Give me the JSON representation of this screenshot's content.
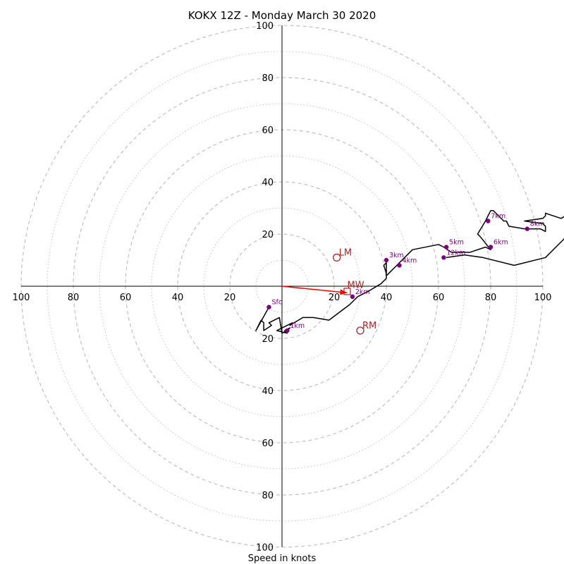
{
  "chart_data": {
    "type": "hodograph",
    "title": "KOKX 12Z - Monday March 30 2020",
    "xlabel": "Speed in knots",
    "rlim": [
      0,
      100
    ],
    "ring_labels": [
      "20",
      "40",
      "60",
      "80",
      "100"
    ],
    "grid": true,
    "colors": {
      "profile": "#000000",
      "height_markers": "#800080",
      "motion": "#b22222",
      "shear_vector": "#ff0000",
      "grid": "#bbbbbb",
      "axes": "#000000"
    },
    "profile_line": [
      [
        -5,
        -8
      ],
      [
        -10,
        -17
      ],
      [
        -8,
        -13
      ],
      [
        -7,
        -14
      ],
      [
        -7,
        -17
      ],
      [
        -4,
        -15
      ],
      [
        -5,
        -14
      ],
      [
        -1,
        -12
      ],
      [
        0,
        -18
      ],
      [
        2,
        -17
      ],
      [
        3,
        -16
      ],
      [
        1,
        -17
      ],
      [
        2,
        -18
      ],
      [
        -2,
        -17
      ],
      [
        0,
        -16
      ],
      [
        4,
        -14
      ],
      [
        3,
        -15
      ],
      [
        8,
        -12
      ],
      [
        12,
        -12
      ],
      [
        18,
        -13
      ],
      [
        26,
        -7
      ],
      [
        29,
        -4
      ],
      [
        33,
        -2
      ],
      [
        38,
        1
      ],
      [
        40,
        3
      ],
      [
        40,
        5
      ],
      [
        39,
        8
      ],
      [
        40,
        9
      ],
      [
        40,
        4
      ],
      [
        43,
        7
      ],
      [
        50,
        14
      ],
      [
        60,
        16
      ],
      [
        62,
        15
      ],
      [
        65,
        13
      ],
      [
        72,
        13
      ],
      [
        78,
        15
      ],
      [
        80,
        14
      ],
      [
        76,
        19
      ],
      [
        75,
        20
      ],
      [
        78,
        25
      ],
      [
        80,
        29
      ],
      [
        81,
        29
      ],
      [
        83,
        27
      ],
      [
        85,
        25
      ],
      [
        86,
        25
      ],
      [
        87,
        23
      ],
      [
        93,
        22
      ],
      [
        99,
        22
      ],
      [
        101,
        21
      ],
      [
        101,
        23
      ],
      [
        100,
        24
      ],
      [
        93,
        25
      ],
      [
        100,
        26
      ],
      [
        101,
        27
      ],
      [
        101,
        28
      ],
      [
        107,
        26
      ],
      [
        112,
        29
      ],
      [
        120,
        31
      ],
      [
        115,
        25
      ],
      [
        101,
        11
      ],
      [
        89,
        8
      ],
      [
        77,
        11
      ],
      [
        70,
        12
      ],
      [
        63,
        11
      ]
    ],
    "height_markers": [
      {
        "label": "Sfc",
        "x": -5,
        "y": -8
      },
      {
        "label": "1km",
        "x": 2,
        "y": -17
      },
      {
        "label": "2km",
        "x": 27,
        "y": -4
      },
      {
        "label": "3km",
        "x": 40,
        "y": 10
      },
      {
        "label": "4km",
        "x": 45,
        "y": 8
      },
      {
        "label": "5km",
        "x": 63,
        "y": 15
      },
      {
        "label": "6km",
        "x": 80,
        "y": 15
      },
      {
        "label": "7km",
        "x": 79,
        "y": 25
      },
      {
        "label": "8km",
        "x": 94,
        "y": 22
      },
      {
        "label": "12km",
        "x": 62,
        "y": 11
      }
    ],
    "storm_motion": [
      {
        "label": "LM",
        "x": 21,
        "y": 11
      },
      {
        "label": "RM",
        "x": 30,
        "y": -17
      },
      {
        "label": "MW",
        "x": 25,
        "y": -2
      }
    ],
    "shear_vector": {
      "x": 25,
      "y": -2.5
    }
  }
}
